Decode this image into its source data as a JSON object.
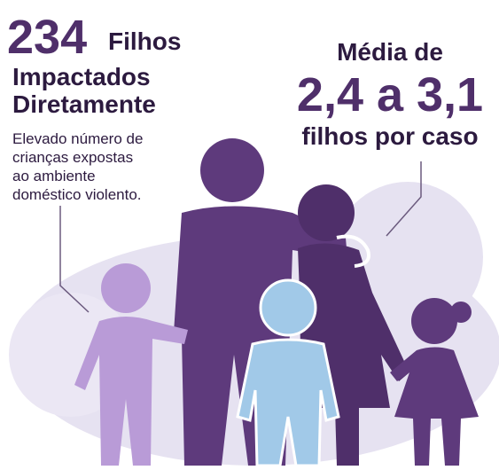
{
  "left": {
    "number": "234",
    "word": "Filhos",
    "line2": "Impactados",
    "line3": "Diretamente",
    "description": [
      "Elevado número de",
      "crianças expostas",
      "ao ambiente",
      "doméstico violento."
    ]
  },
  "right": {
    "line1": "Média de",
    "range": "2,4 a 3,1",
    "line3": "filhos por caso"
  }
}
